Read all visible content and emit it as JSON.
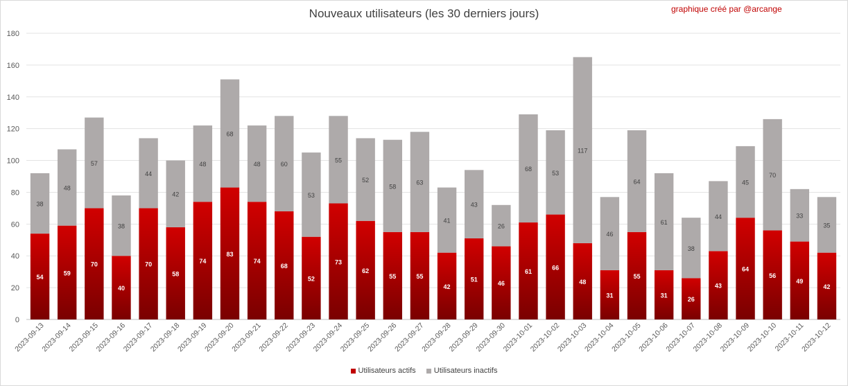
{
  "chart_data": {
    "type": "bar",
    "stacked": true,
    "title": "Nouveaux utilisateurs  (les 30 derniers  jours)",
    "credit": "graphique créé par @arcange",
    "xlabel": "",
    "ylabel": "",
    "ylim": [
      0,
      180
    ],
    "yticks": [
      0,
      20,
      40,
      60,
      80,
      100,
      120,
      140,
      160,
      180
    ],
    "grid": true,
    "legend_position": "bottom",
    "categories": [
      "2023-09-13",
      "2023-09-14",
      "2023-09-15",
      "2023-09-16",
      "2023-09-17",
      "2023-09-18",
      "2023-09-19",
      "2023-09-20",
      "2023-09-21",
      "2023-09-22",
      "2023-09-23",
      "2023-09-24",
      "2023-09-25",
      "2023-09-26",
      "2023-09-27",
      "2023-09-28",
      "2023-09-29",
      "2023-09-30",
      "2023-10-01",
      "2023-10-02",
      "2023-10-03",
      "2023-10-04",
      "2023-10-05",
      "2023-10-06",
      "2023-10-07",
      "2023-10-08",
      "2023-10-09",
      "2023-10-10",
      "2023-10-11",
      "2023-10-12"
    ],
    "series": [
      {
        "name": "Utilisateurs actifs",
        "color": "#c00000",
        "values": [
          54,
          59,
          70,
          40,
          70,
          58,
          74,
          83,
          74,
          68,
          52,
          73,
          62,
          55,
          55,
          42,
          51,
          46,
          61,
          66,
          48,
          31,
          55,
          31,
          26,
          43,
          64,
          56,
          49,
          42
        ]
      },
      {
        "name": "Utilisateurs inactifs",
        "color": "#aeaaaa",
        "values": [
          38,
          48,
          57,
          38,
          44,
          42,
          48,
          68,
          48,
          60,
          53,
          55,
          52,
          58,
          63,
          41,
          43,
          26,
          68,
          53,
          117,
          46,
          64,
          61,
          38,
          44,
          45,
          70,
          33,
          35
        ]
      }
    ]
  }
}
